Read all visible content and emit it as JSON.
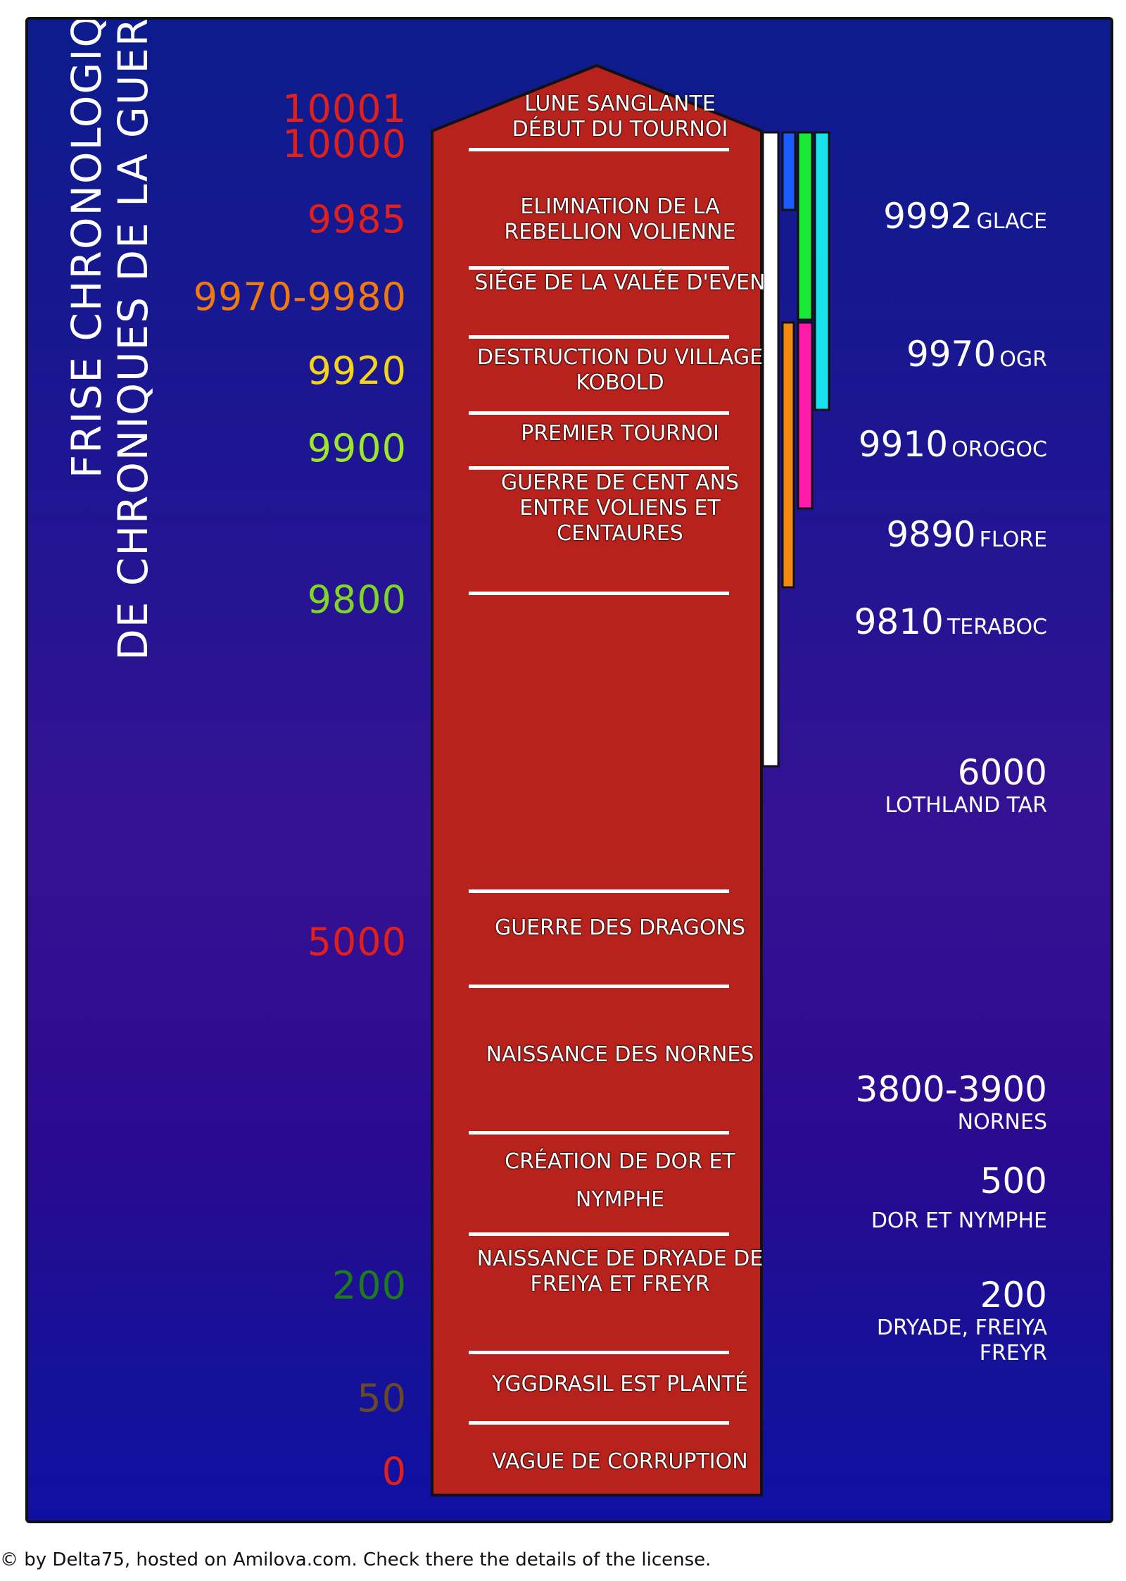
{
  "title": {
    "line1": "FRISE CHRONOLOGIQUE",
    "line2": "DE CHRONIQUES DE LA GUERRE DES SIX"
  },
  "years_left": [
    {
      "label": "10001",
      "color": "#e0201a"
    },
    {
      "label": "10000",
      "color": "#e0201a"
    },
    {
      "label": "9985",
      "color": "#e0201a"
    },
    {
      "label": "9970-9980",
      "color": "#f07a10"
    },
    {
      "label": "9920",
      "color": "#f5d21b"
    },
    {
      "label": "9900",
      "color": "#9ee62a"
    },
    {
      "label": "9800",
      "color": "#7fd628"
    },
    {
      "label": "5000",
      "color": "#e0201a"
    },
    {
      "label": "200",
      "color": "#1f7a1f"
    },
    {
      "label": "50",
      "color": "#6a4a24"
    },
    {
      "label": "0",
      "color": "#e0201a"
    }
  ],
  "events": [
    {
      "text": "LUNE SANGLANTE"
    },
    {
      "text": "DÉBUT DU TOURNOI"
    },
    {
      "text": "ELIMNATION DE LA REBELLION VOLIENNE"
    },
    {
      "text": "SIÉGE DE LA VALÉE D'EVEN"
    },
    {
      "text": "DESTRUCTION DU VILLAGE KOBOLD"
    },
    {
      "text": "PREMIER TOURNOI"
    },
    {
      "text": "GUERRE DE CENT ANS ENTRE VOLIENS ET CENTAURES"
    },
    {
      "text": "GUERRE DES DRAGONS"
    },
    {
      "text": "NAISSANCE DES NORNES"
    },
    {
      "text": "CRÉATION DE DOR ET NYMPHE"
    },
    {
      "text": "NAISSANCE DE DRYADE DE FREIYA ET FREYR"
    },
    {
      "text": "YGGDRASIL EST PLANTÉ"
    },
    {
      "text": "VAGUE DE CORRUPTION"
    }
  ],
  "races": [
    {
      "year": "9992",
      "name": "GLACE",
      "color": "#1a5cff"
    },
    {
      "year": "9970",
      "name": "OGR",
      "color": "#18e838"
    },
    {
      "year": "9910",
      "name": "OROGOC",
      "color": "#19e2ef"
    },
    {
      "year": "9890",
      "name": "FLORE",
      "color": "#ff1aa8"
    },
    {
      "year": "9810",
      "name": "TERABOC",
      "color": "#f28a12"
    },
    {
      "year": "6000",
      "name": "LOTHLAND TAR",
      "color": "#ffffff"
    },
    {
      "year": "3800-3900",
      "name": "NORNES"
    },
    {
      "year": "500",
      "name": "DOR ET NYMPHE"
    },
    {
      "year": "200",
      "name": "DRYADE, FREIYA FREYR"
    }
  ],
  "credit": "© by Delta75, hosted on Amilova.com. Check there the details of the license."
}
